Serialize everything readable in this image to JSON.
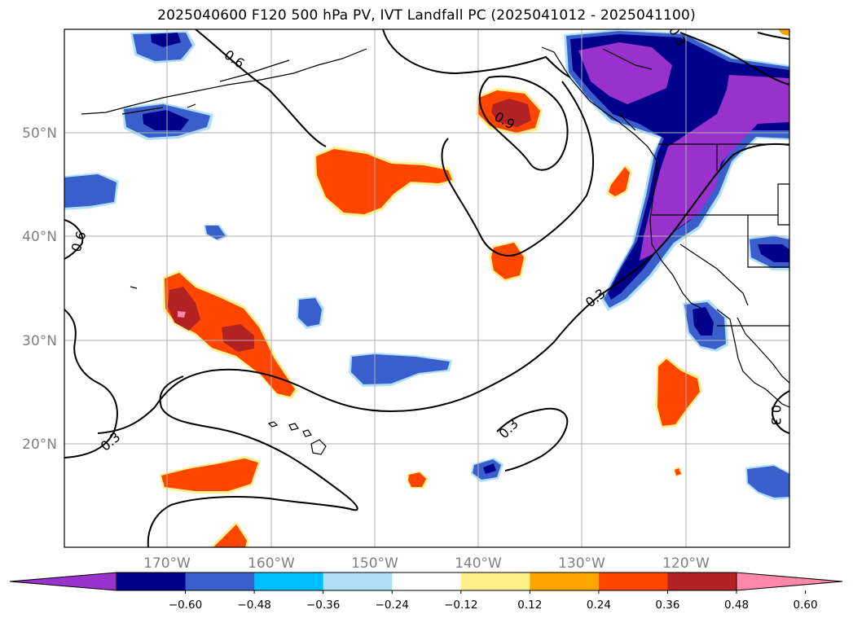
{
  "title": "2025040600 F120 500 hPa PV, IVT Landfall PC (2025041012 - 2025041100)",
  "latitude_labels": [
    "50°N",
    "40°N",
    "30°N",
    "20°N"
  ],
  "longitude_labels": [
    "170°W",
    "160°W",
    "150°W",
    "140°W",
    "130°W",
    "120°W"
  ],
  "contour_labels": [
    "0.6",
    "0.6",
    "0.9",
    "0.3",
    "0.3",
    "0.3",
    "0.3",
    "0.3"
  ],
  "colorbar": {
    "ticks": [
      "−0.60",
      "−0.48",
      "−0.36",
      "−0.24",
      "−0.12",
      "0.12",
      "0.24",
      "0.36",
      "0.48",
      "0.60"
    ],
    "colors": [
      "#9932cc",
      "#00008b",
      "#3a5fcd",
      "#00bfff",
      "#b0e0f8",
      "#ffffff",
      "#fff08c",
      "#ffa500",
      "#ff4500",
      "#b22222",
      "#ff88aa"
    ]
  },
  "colors": {
    "purple": "#9932cc",
    "navy": "#00008b",
    "royal_blue": "#3a5fcd",
    "sky": "#00bfff",
    "light_blue": "#b0e0f8",
    "yellow": "#fff08c",
    "orange": "#ffa500",
    "orange_red": "#ff4500",
    "firebrick": "#b22222",
    "pink": "#ff88aa",
    "grid": "#b0b0b0"
  }
}
